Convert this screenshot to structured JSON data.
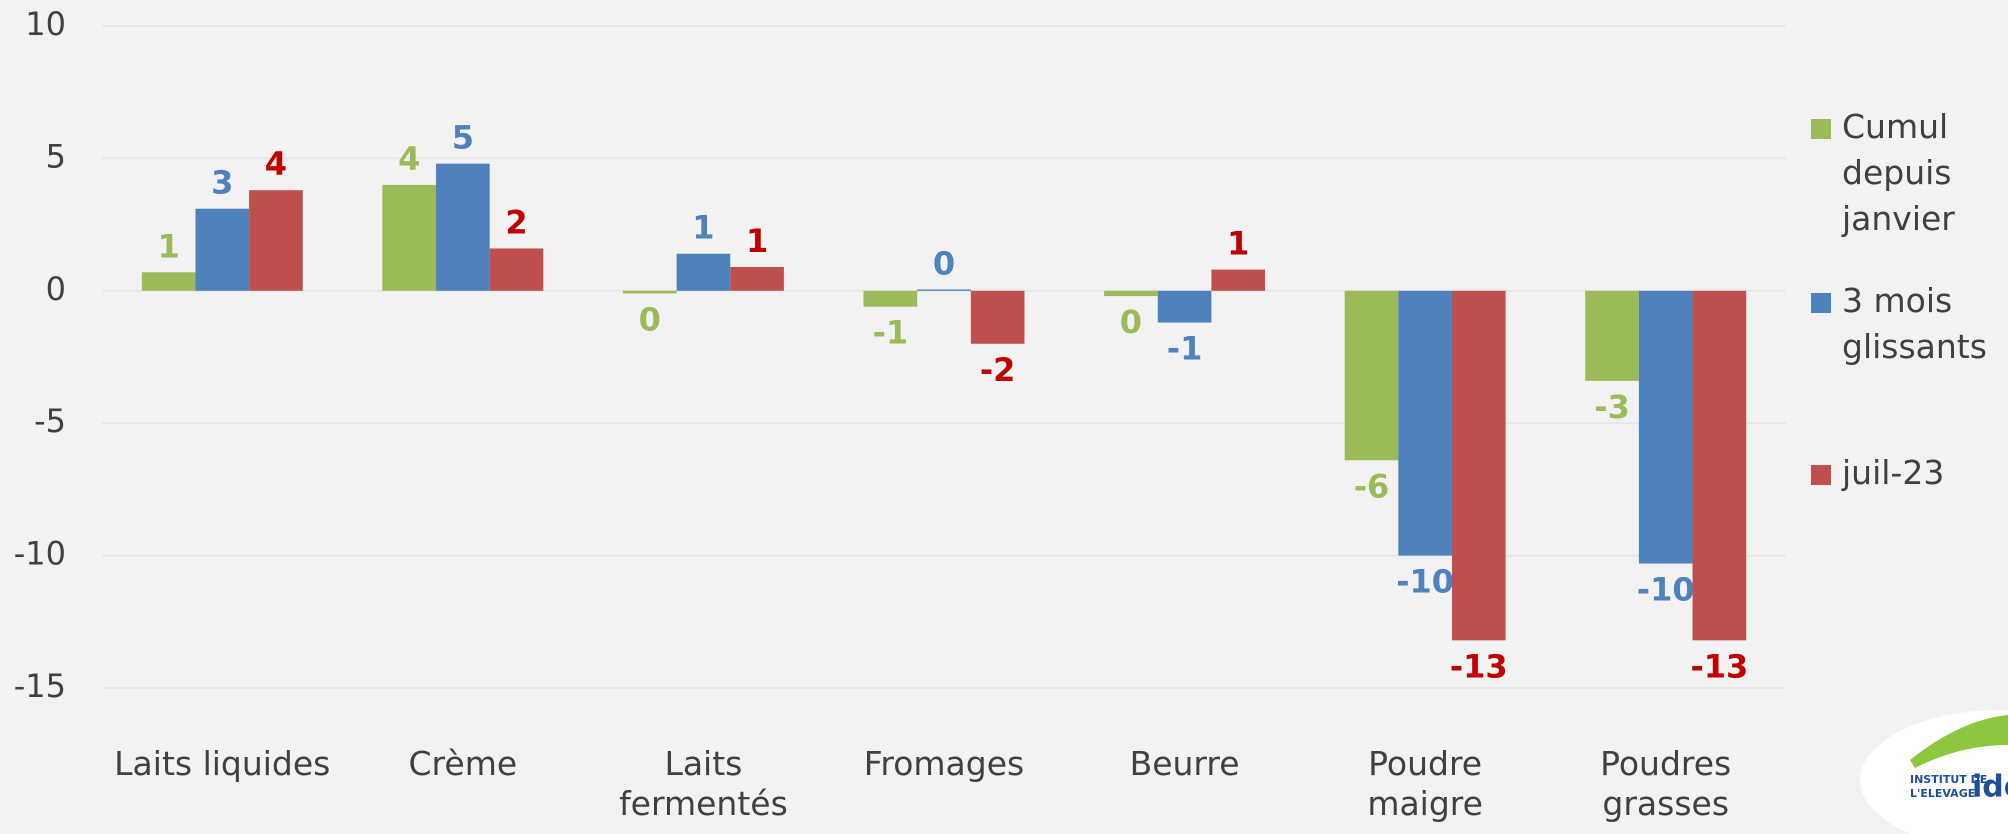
{
  "chart_data": {
    "type": "bar",
    "categories": [
      "Laits liquides",
      "Crème",
      "Laits\nfermentés",
      "Fromages",
      "Beurre",
      "Poudre\nmaigre",
      "Poudres\ngrasses"
    ],
    "series": [
      {
        "name": "Cumul depuis janvier",
        "color": "#9bbb59",
        "label_color": "#9bbb59",
        "values": [
          0.7,
          4.0,
          -0.1,
          -0.6,
          -0.2,
          -6.4,
          -3.4
        ],
        "value_labels": [
          "1",
          "4",
          "0",
          "-1",
          "0",
          "-6",
          "-3"
        ]
      },
      {
        "name": "3 mois glissants",
        "color": "#4f81bd",
        "label_color": "#4f81bd",
        "values": [
          3.1,
          4.8,
          1.4,
          0.05,
          -1.2,
          -10.0,
          -10.3
        ],
        "value_labels": [
          "3",
          "5",
          "1",
          "0",
          "-1",
          "-10",
          "-10"
        ]
      },
      {
        "name": "juil-23",
        "color": "#c0504d",
        "label_color": "#c00000",
        "values": [
          3.8,
          1.6,
          0.9,
          -2.0,
          0.8,
          -13.2,
          -13.2
        ],
        "value_labels": [
          "4",
          "2",
          "1",
          "-2",
          "1",
          "-13",
          "-13"
        ]
      }
    ],
    "ylim": [
      -15,
      10
    ],
    "yticks": [
      -15,
      -10,
      -5,
      0,
      5,
      10
    ],
    "grid": true,
    "legend": "right"
  },
  "logo": {
    "line1": "INSTITUT DE",
    "line2": "L'ELEVAGE",
    "brand": "ide"
  }
}
